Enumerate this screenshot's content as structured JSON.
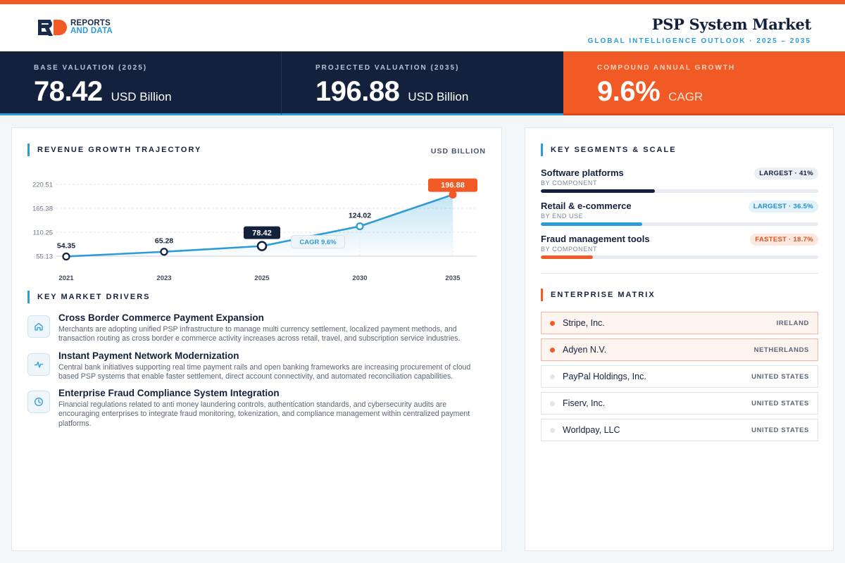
{
  "brand": {
    "line1": "REPORTS",
    "line2": "AND DATA"
  },
  "header": {
    "title": "PSP System Market",
    "subtitle": "GLOBAL INTELLIGENCE OUTLOOK  ·  2025 – 2035"
  },
  "kpis": [
    {
      "label": "BASE VALUATION (2025)",
      "value": "78.42",
      "unit": "USD Billion"
    },
    {
      "label": "PROJECTED VALUATION (2035)",
      "value": "196.88",
      "unit": "USD Billion"
    },
    {
      "label": "COMPOUND ANNUAL GROWTH",
      "value": "9.6%",
      "unit": "CAGR"
    }
  ],
  "revenue": {
    "title": "REVENUE GROWTH TRAJECTORY",
    "unit": "USD BILLION"
  },
  "chart_data": {
    "type": "area",
    "categories": [
      "2021",
      "2023",
      "2025",
      "2030",
      "2035"
    ],
    "values": [
      54.35,
      65.28,
      78.42,
      124.02,
      196.88
    ],
    "value_labels": [
      "54.35",
      "65.28",
      "78.42",
      "124.02",
      "196.88"
    ],
    "yticks": [
      55.13,
      110.25,
      165.38,
      220.51
    ],
    "ytick_labels": [
      "55.13",
      "110.25",
      "165.38",
      "220.51"
    ],
    "ylim": [
      55.13,
      220.51
    ],
    "annotation": "CAGR 9.6%",
    "highlight_base": "2025",
    "highlight_end": "2035",
    "grid": true,
    "colors": {
      "line": "#2b9cd8",
      "highlight_dark": "#14213d",
      "highlight_orange": "#f15a24"
    }
  },
  "drivers": {
    "title": "KEY MARKET DRIVERS",
    "items": [
      {
        "icon": "home-icon",
        "title": "Cross Border Commerce Payment Expansion",
        "desc": "Merchants are adopting unified PSP infrastructure to manage multi currency settlement, localized payment methods, and transaction routing as cross border e commerce activity increases across retail, travel, and subscription service industries."
      },
      {
        "icon": "activity-icon",
        "title": "Instant Payment Network Modernization",
        "desc": "Central bank initiatives supporting real time payment rails and open banking frameworks are increasing procurement of cloud based PSP systems that enable faster settlement, direct account connectivity, and automated reconciliation capabilities."
      },
      {
        "icon": "clock-icon",
        "title": "Enterprise Fraud Compliance System Integration",
        "desc": "Financial regulations related to anti money laundering controls, authentication standards, and cybersecurity audits are encouraging enterprises to integrate fraud monitoring, tokenization, and compliance management within centralized payment platforms."
      }
    ]
  },
  "segments": {
    "title": "KEY SEGMENTS & SCALE",
    "items": [
      {
        "name": "Software platforms",
        "sub": "BY COMPONENT",
        "badge": "LARGEST · 41%",
        "share": 0.41,
        "color": "#14213d"
      },
      {
        "name": "Retail & e-commerce",
        "sub": "BY END USE",
        "badge": "LARGEST · 36.5%",
        "share": 0.365,
        "color": "#2b9cd8"
      },
      {
        "name": "Fraud management tools",
        "sub": "BY COMPONENT",
        "badge": "FASTEST · 18.7%",
        "share": 0.187,
        "color": "#f15a24"
      }
    ]
  },
  "matrix": {
    "title": "ENTERPRISE MATRIX",
    "rows": [
      {
        "name": "Stripe, Inc.",
        "country": "IRELAND",
        "highlight": true
      },
      {
        "name": "Adyen N.V.",
        "country": "NETHERLANDS",
        "highlight": true
      },
      {
        "name": "PayPal Holdings, Inc.",
        "country": "UNITED STATES",
        "highlight": false
      },
      {
        "name": "Fiserv, Inc.",
        "country": "UNITED STATES",
        "highlight": false
      },
      {
        "name": "Worldpay, LLC",
        "country": "UNITED STATES",
        "highlight": false
      }
    ]
  }
}
